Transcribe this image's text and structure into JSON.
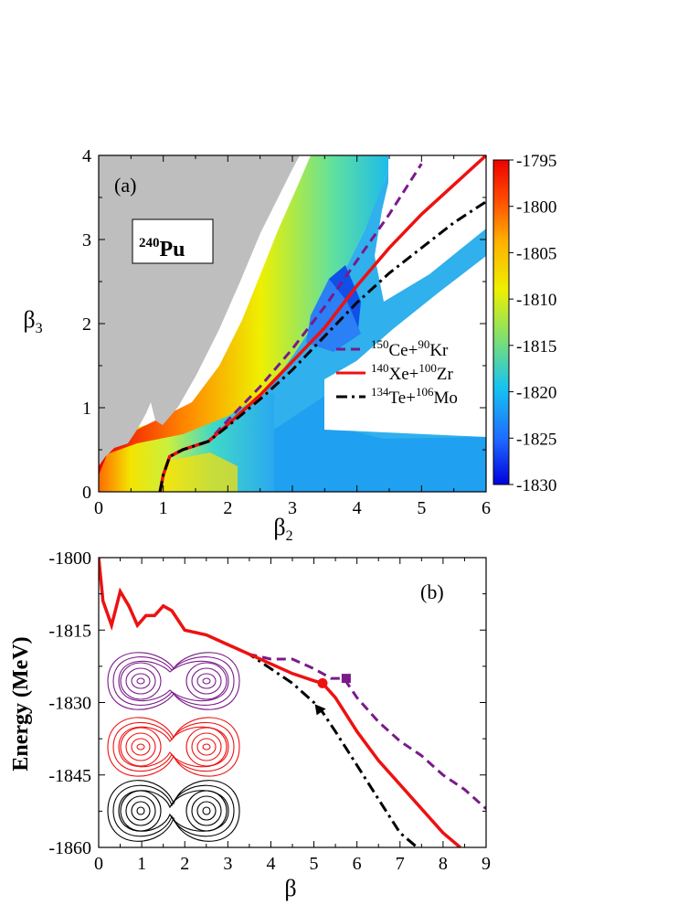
{
  "panel_a": {
    "label": "(a)",
    "nucleus_mass": "240",
    "nucleus_symbol": "Pu",
    "xlabel": "β",
    "xlabel_sub": "2",
    "ylabel": "β",
    "ylabel_sub": "3",
    "xticks": [
      "0",
      "1",
      "2",
      "3",
      "4",
      "5",
      "6"
    ],
    "yticks": [
      "0",
      "1",
      "2",
      "3",
      "4"
    ],
    "colorbar": {
      "ticks": [
        "-1795",
        "-1800",
        "-1805",
        "-1810",
        "-1815",
        "-1820",
        "-1825",
        "-1830"
      ],
      "range": [
        -1830,
        -1795
      ],
      "colors": [
        "#0000dd",
        "#1f6bff",
        "#16c4f0",
        "#7fe070",
        "#eef000",
        "#ffb000",
        "#ff4a00",
        "#ee0000"
      ]
    },
    "legend": [
      {
        "pre1": "150",
        "el1": "Ce+",
        "pre2": "90",
        "el2": "Kr",
        "color": "#7a1a8a",
        "dash": "dash"
      },
      {
        "pre1": "140",
        "el1": "Xe+",
        "pre2": "100",
        "el2": "Zr",
        "color": "#ee1111",
        "dash": "solid"
      },
      {
        "pre1": "134",
        "el1": "Te+",
        "pre2": "106",
        "el2": "Mo",
        "color": "#000000",
        "dash": "dashdot"
      }
    ]
  },
  "panel_b": {
    "label": "(b)",
    "xlabel": "β",
    "ylabel": "Energy (MeV)",
    "xticks": [
      "0",
      "1",
      "2",
      "3",
      "4",
      "5",
      "6",
      "7",
      "8",
      "9"
    ],
    "yticks": [
      "-1800",
      "-1815",
      "-1830",
      "-1845",
      "-1860"
    ]
  },
  "chart_data": [
    {
      "type": "heatmap",
      "xlim": [
        0,
        6
      ],
      "ylim": [
        0,
        4
      ],
      "zlim": [
        -1830,
        -1795
      ],
      "series": [
        {
          "name": "150Ce+90Kr",
          "x": [
            0.95,
            1.0,
            1.1,
            1.3,
            1.7,
            2.0,
            2.5,
            3.0,
            3.5,
            4.0,
            4.5,
            5.0
          ],
          "y": [
            0.0,
            0.2,
            0.42,
            0.5,
            0.6,
            0.85,
            1.25,
            1.7,
            2.2,
            2.75,
            3.3,
            3.9
          ]
        },
        {
          "name": "140Xe+100Zr",
          "x": [
            0.95,
            1.0,
            1.1,
            1.3,
            1.7,
            2.0,
            2.5,
            3.0,
            3.5,
            4.0,
            4.5,
            5.0,
            5.5,
            6.0
          ],
          "y": [
            0.0,
            0.2,
            0.42,
            0.5,
            0.6,
            0.8,
            1.15,
            1.55,
            1.95,
            2.45,
            2.9,
            3.3,
            3.65,
            4.0
          ]
        },
        {
          "name": "134Te+106Mo",
          "x": [
            0.95,
            1.0,
            1.1,
            1.3,
            1.7,
            2.0,
            2.5,
            3.0,
            3.5,
            4.0,
            4.5,
            5.0,
            5.5,
            6.0
          ],
          "y": [
            0.0,
            0.2,
            0.42,
            0.5,
            0.6,
            0.78,
            1.1,
            1.45,
            1.85,
            2.25,
            2.6,
            2.9,
            3.2,
            3.45
          ]
        }
      ]
    },
    {
      "type": "line",
      "xlim": [
        0,
        9
      ],
      "ylim": [
        -1860,
        -1800
      ],
      "series": [
        {
          "name": "150Ce+90Kr",
          "x": [
            0,
            0.1,
            0.3,
            0.5,
            0.7,
            0.9,
            1.1,
            1.3,
            1.5,
            1.7,
            2.0,
            2.5,
            3.0,
            3.5,
            4.0,
            4.5,
            5.0,
            5.4,
            5.7,
            6.0,
            6.5,
            7.0,
            7.5,
            8.0,
            8.5,
            9.0
          ],
          "y": [
            -1800,
            -1809,
            -1814,
            -1807,
            -1810,
            -1814,
            -1812,
            -1812,
            -1810,
            -1811,
            -1815,
            -1816,
            -1818,
            -1820,
            -1821,
            -1821,
            -1823,
            -1825,
            -1825,
            -1829,
            -1834,
            -1838,
            -1841,
            -1845,
            -1848,
            -1852
          ]
        },
        {
          "name": "140Xe+100Zr",
          "x": [
            0,
            0.1,
            0.3,
            0.5,
            0.7,
            0.9,
            1.1,
            1.3,
            1.5,
            1.7,
            2.0,
            2.5,
            3.0,
            3.5,
            4.0,
            4.5,
            5.0,
            5.2,
            5.5,
            6.0,
            6.5,
            7.0,
            7.5,
            8.0,
            8.4
          ],
          "y": [
            -1800,
            -1809,
            -1814,
            -1807,
            -1810,
            -1814,
            -1812,
            -1812,
            -1810,
            -1811,
            -1815,
            -1816,
            -1818,
            -1820,
            -1822,
            -1824,
            -1825.5,
            -1826,
            -1829,
            -1836,
            -1842,
            -1847,
            -1852,
            -1857,
            -1860
          ]
        },
        {
          "name": "134Te+106Mo",
          "x": [
            0,
            0.1,
            0.3,
            0.5,
            0.7,
            0.9,
            1.1,
            1.3,
            1.5,
            1.7,
            2.0,
            2.5,
            3.0,
            3.5,
            4.0,
            4.5,
            5.0,
            5.2,
            5.5,
            6.0,
            6.5,
            7.0,
            7.4
          ],
          "y": [
            -1800,
            -1809,
            -1814,
            -1807,
            -1810,
            -1814,
            -1812,
            -1812,
            -1810,
            -1811,
            -1815,
            -1816,
            -1818,
            -1820,
            -1823,
            -1826,
            -1830,
            -1832,
            -1836,
            -1843,
            -1850,
            -1857,
            -1860
          ]
        }
      ],
      "markers": [
        {
          "series": "150Ce+90Kr",
          "x": 5.75,
          "y": -1825,
          "shape": "square"
        },
        {
          "series": "140Xe+100Zr",
          "x": 5.2,
          "y": -1826,
          "shape": "circle"
        },
        {
          "series": "134Te+106Mo",
          "x": 5.15,
          "y": -1831.5,
          "shape": "triangle"
        }
      ]
    }
  ]
}
